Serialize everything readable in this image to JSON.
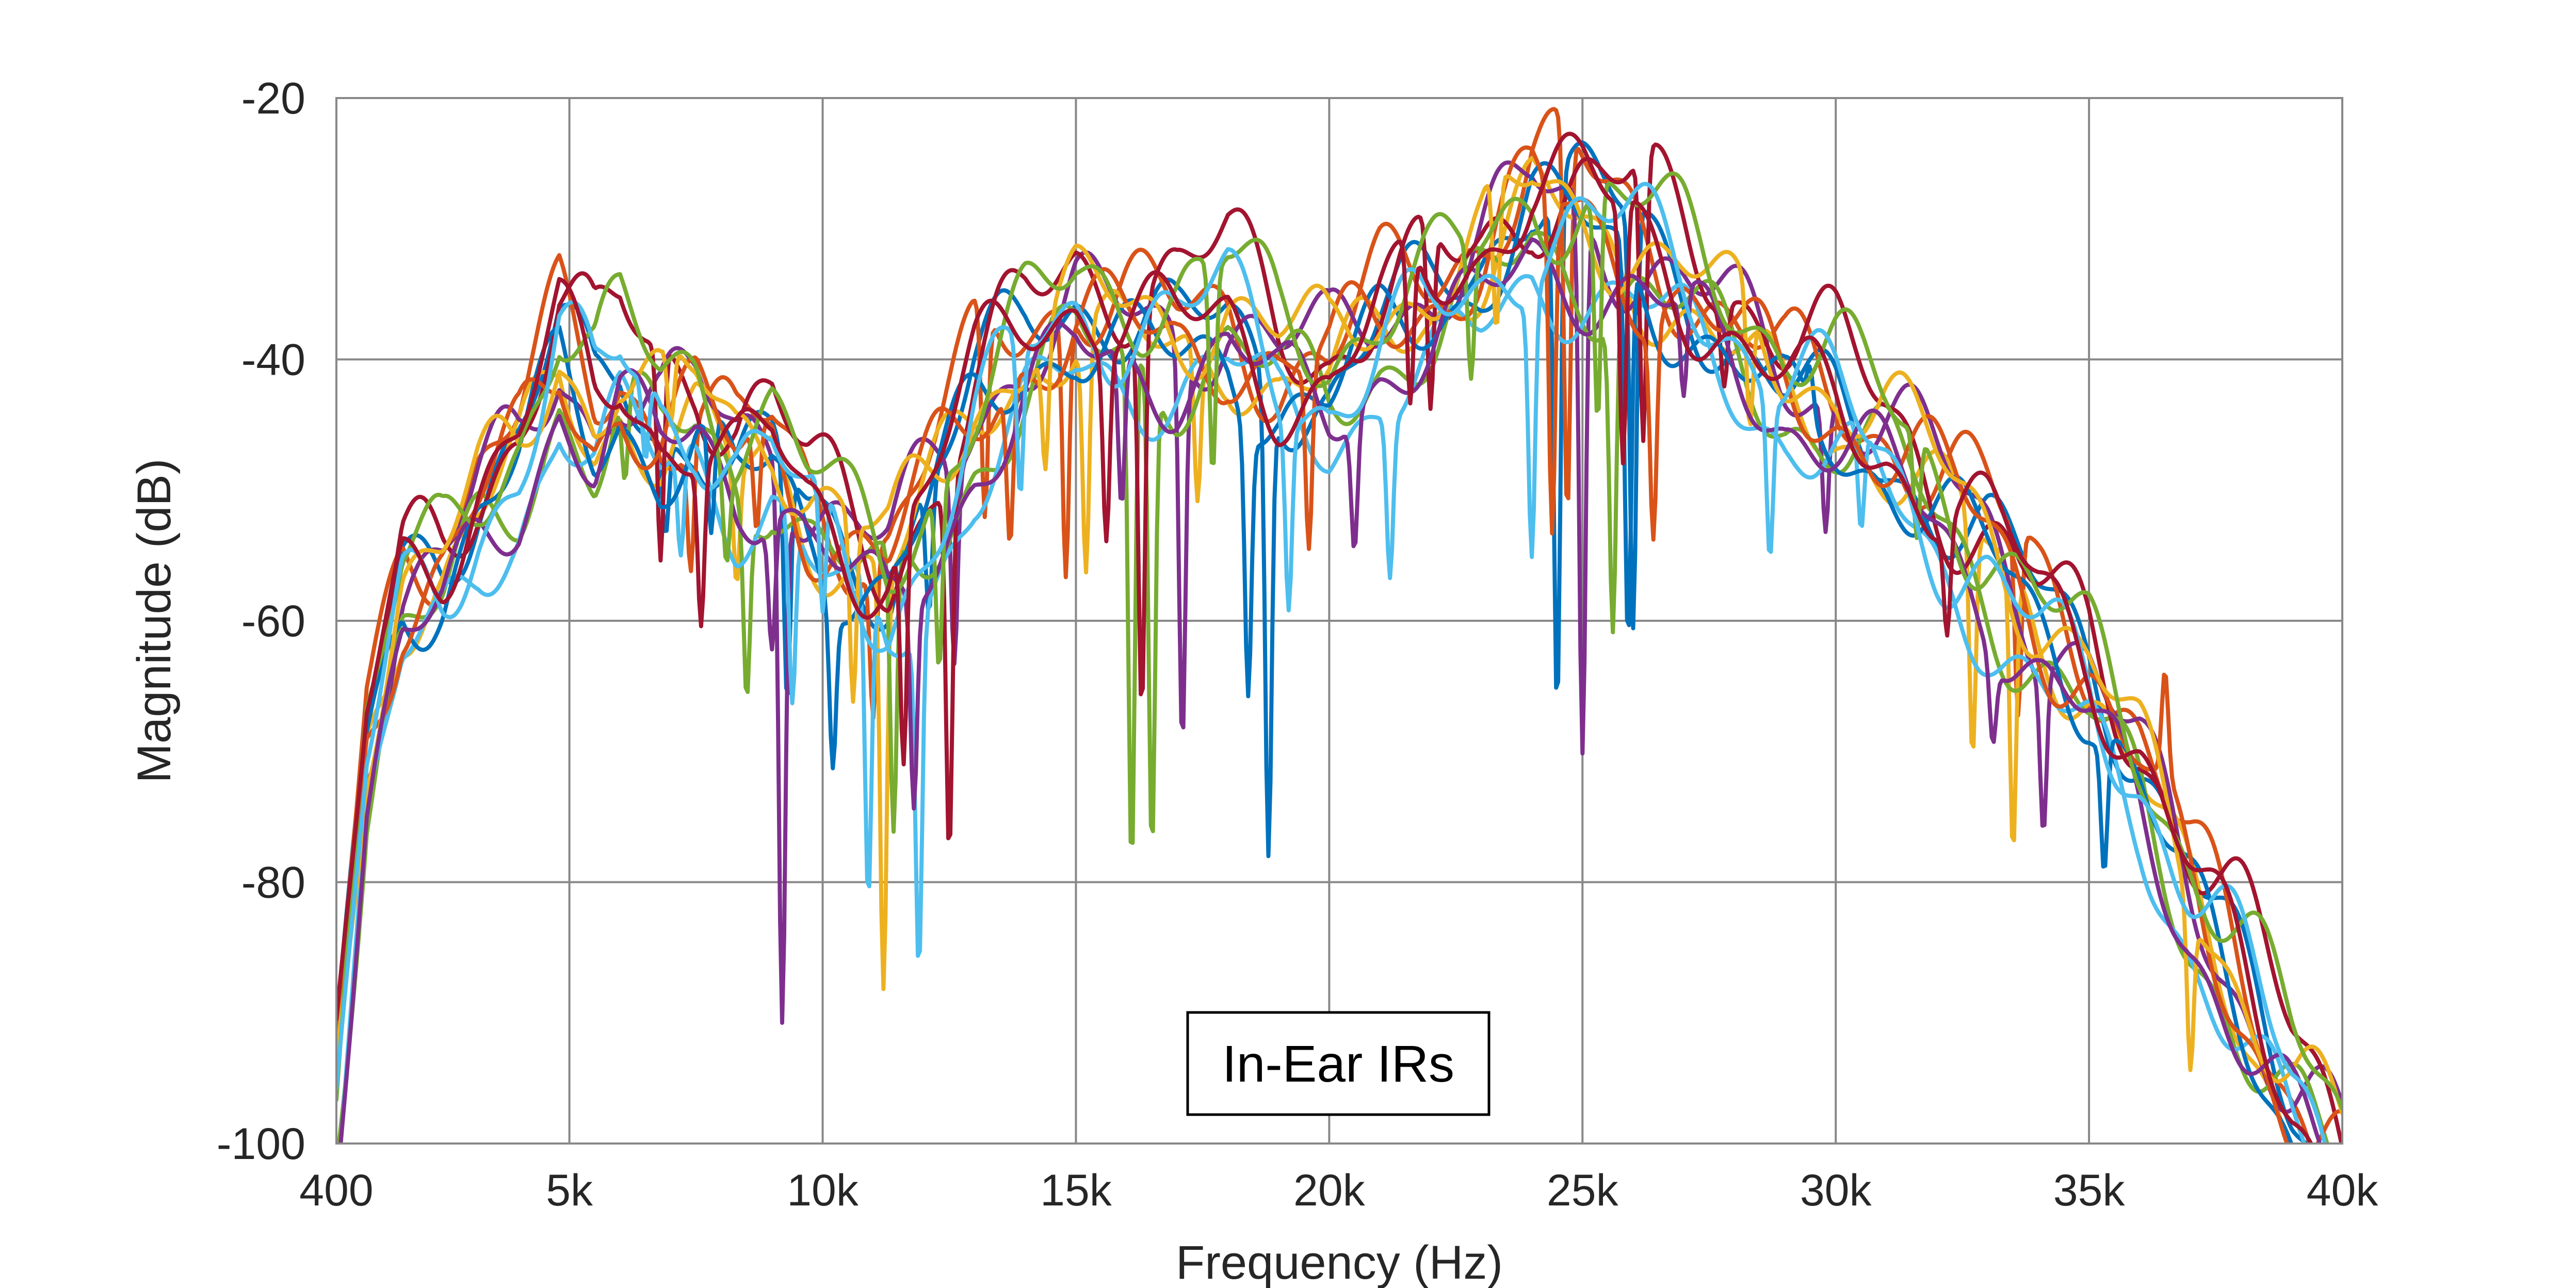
{
  "chart_data": {
    "type": "line",
    "xlabel": "Frequency (Hz)",
    "ylabel": "Magnitude (dB)",
    "xlim": [
      400,
      40000
    ],
    "ylim": [
      -100,
      -20
    ],
    "x_ticks": [
      400,
      5000,
      10000,
      15000,
      20000,
      25000,
      30000,
      35000,
      40000
    ],
    "x_tick_labels": [
      "400",
      "5k",
      "10k",
      "15k",
      "20k",
      "25k",
      "30k",
      "35k",
      "40k"
    ],
    "y_ticks": [
      -100,
      -80,
      -60,
      -40,
      -20
    ],
    "y_tick_labels": [
      "-100",
      "-80",
      "-60",
      "-40",
      "-20"
    ],
    "grid": true,
    "legend": {
      "position": "bottom-center",
      "entries": [
        "In-Ear IRs"
      ]
    },
    "colors": [
      "#0072BD",
      "#D95319",
      "#EDB120",
      "#7E2F8E",
      "#77AC30",
      "#4DBEEE",
      "#A2142F"
    ],
    "envelope_x": [
      400,
      1000,
      1700,
      2500,
      3200,
      4000,
      4800,
      5500,
      6000,
      6800,
      7500,
      8300,
      9000,
      9700,
      10500,
      11300,
      12000,
      13000,
      14000,
      15000,
      16000,
      17000,
      18000,
      19000,
      20000,
      21000,
      22000,
      23000,
      24000,
      25000,
      26000,
      27000,
      28000,
      29000,
      30000,
      31000,
      32000,
      33000,
      34000,
      35000,
      36000,
      37000,
      38000,
      39000,
      40000
    ],
    "envelope_y": [
      -96,
      -70,
      -58,
      -56,
      -51,
      -47,
      -39,
      -44,
      -41,
      -45,
      -44,
      -48,
      -47,
      -52,
      -55,
      -57,
      -52,
      -44,
      -39,
      -36,
      -37,
      -38,
      -37,
      -41,
      -42,
      -38,
      -36,
      -33,
      -28,
      -29,
      -31,
      -34,
      -38,
      -42,
      -44,
      -47,
      -51,
      -55,
      -60,
      -64,
      -71,
      -80,
      -88,
      -96,
      -102
    ],
    "series": [
      {
        "color": "#0072BD",
        "offset": 0.5,
        "phase": 0.0,
        "amp": 3.2,
        "dips": [
          [
            6900,
            -7
          ],
          [
            9300,
            -18
          ],
          [
            12100,
            -10
          ],
          [
            18800,
            -35
          ],
          [
            24500,
            -40
          ],
          [
            26000,
            -32
          ]
        ]
      },
      {
        "color": "#D95319",
        "offset": 2.0,
        "phase": 0.9,
        "amp": 3.6,
        "dips": [
          [
            7400,
            -10
          ],
          [
            11000,
            -12
          ],
          [
            13200,
            -16
          ],
          [
            14800,
            -20
          ],
          [
            24700,
            -30
          ],
          [
            33600,
            -14
          ]
        ]
      },
      {
        "color": "#EDB120",
        "offset": -1.0,
        "phase": 1.8,
        "amp": 3.0,
        "dips": [
          [
            8300,
            -9
          ],
          [
            11200,
            -32
          ],
          [
            15200,
            -18
          ],
          [
            17400,
            -12
          ],
          [
            32700,
            -18
          ],
          [
            33500,
            -22
          ]
        ]
      },
      {
        "color": "#7E2F8E",
        "offset": 1.0,
        "phase": 2.7,
        "amp": 3.4,
        "dips": [
          [
            9200,
            -40
          ],
          [
            12600,
            -15
          ],
          [
            17100,
            -30
          ],
          [
            25000,
            -42
          ],
          [
            29800,
            -10
          ],
          [
            34100,
            -12
          ]
        ]
      },
      {
        "color": "#77AC30",
        "offset": -2.5,
        "phase": 3.6,
        "amp": 3.3,
        "dips": [
          [
            6100,
            -7
          ],
          [
            8500,
            -14
          ],
          [
            11400,
            -22
          ],
          [
            16100,
            -40
          ],
          [
            16500,
            -36
          ],
          [
            25600,
            -24
          ]
        ]
      },
      {
        "color": "#4DBEEE",
        "offset": -4.5,
        "phase": 4.5,
        "amp": 2.8,
        "dips": [
          [
            7200,
            -8
          ],
          [
            9400,
            -14
          ],
          [
            10900,
            -24
          ],
          [
            11900,
            -26
          ],
          [
            21200,
            -12
          ],
          [
            30500,
            -8
          ]
        ]
      },
      {
        "color": "#A2142F",
        "offset": 3.0,
        "phase": 5.4,
        "amp": 3.7,
        "dips": [
          [
            6800,
            -16
          ],
          [
            12500,
            -28
          ],
          [
            16300,
            -30
          ],
          [
            22000,
            -14
          ],
          [
            26200,
            -22
          ],
          [
            27800,
            -6
          ]
        ]
      },
      {
        "color": "#0072BD",
        "offset": -1.5,
        "phase": 1.2,
        "amp": 3.1,
        "dips": [
          [
            7800,
            -9
          ],
          [
            10200,
            -12
          ],
          [
            18400,
            -20
          ],
          [
            25900,
            -30
          ],
          [
            29500,
            3
          ],
          [
            35300,
            -10
          ]
        ]
      },
      {
        "color": "#D95319",
        "offset": 0.0,
        "phase": 2.1,
        "amp": 3.5,
        "dips": [
          [
            8700,
            -8
          ],
          [
            13700,
            -12
          ],
          [
            19600,
            -14
          ],
          [
            24400,
            -26
          ],
          [
            26400,
            -16
          ],
          [
            36500,
            8
          ]
        ]
      },
      {
        "color": "#EDB120",
        "offset": 1.5,
        "phase": 3.0,
        "amp": 3.2,
        "dips": [
          [
            7000,
            -6
          ],
          [
            10600,
            -14
          ],
          [
            14400,
            -10
          ],
          [
            23300,
            -12
          ],
          [
            28300,
            -10
          ],
          [
            37000,
            -12
          ]
        ]
      },
      {
        "color": "#7E2F8E",
        "offset": -3.0,
        "phase": 3.9,
        "amp": 3.0,
        "dips": [
          [
            9000,
            -10
          ],
          [
            11800,
            -16
          ],
          [
            15900,
            -12
          ],
          [
            20500,
            -10
          ],
          [
            27000,
            -8
          ],
          [
            33100,
            -6
          ]
        ]
      },
      {
        "color": "#77AC30",
        "offset": 2.5,
        "phase": 4.8,
        "amp": 3.4,
        "dips": [
          [
            8100,
            -7
          ],
          [
            12300,
            -14
          ],
          [
            17700,
            -16
          ],
          [
            22800,
            -10
          ],
          [
            25300,
            -18
          ],
          [
            31600,
            -8
          ]
        ]
      },
      {
        "color": "#4DBEEE",
        "offset": -0.5,
        "phase": 5.7,
        "amp": 3.6,
        "dips": [
          [
            6500,
            -6
          ],
          [
            10000,
            -10
          ],
          [
            13900,
            -12
          ],
          [
            19200,
            -14
          ],
          [
            24000,
            -20
          ],
          [
            28700,
            -12
          ]
        ]
      },
      {
        "color": "#A2142F",
        "offset": 0.8,
        "phase": 0.4,
        "amp": 3.3,
        "dips": [
          [
            7600,
            -12
          ],
          [
            11600,
            -18
          ],
          [
            15600,
            -14
          ],
          [
            21600,
            -12
          ],
          [
            25800,
            -20
          ],
          [
            32200,
            -8
          ]
        ]
      }
    ]
  }
}
